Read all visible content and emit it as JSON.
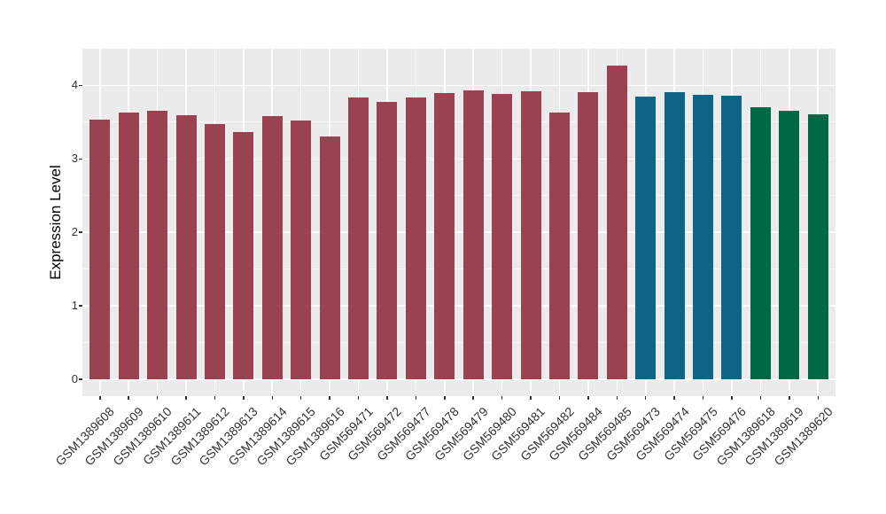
{
  "chart_data": {
    "type": "bar",
    "title": "",
    "xlabel": "",
    "ylabel": "Expression Level",
    "ylim": [
      0,
      4.5
    ],
    "yticks": [
      0,
      1,
      2,
      3,
      4
    ],
    "yminor_ticks": [
      0.5,
      1.5,
      2.5,
      3.5
    ],
    "grid": "white major and minor gridlines on gray panel",
    "legend_position": "none",
    "panel_background": "#EBEBEB",
    "gridline_color": "#FFFFFF",
    "axis_text_color": "#333333",
    "categories": [
      "GSM1389608",
      "GSM1389609",
      "GSM1389610",
      "GSM1389611",
      "GSM1389612",
      "GSM1389613",
      "GSM1389614",
      "GSM1389615",
      "GSM1389616",
      "GSM569471",
      "GSM569472",
      "GSM569477",
      "GSM569478",
      "GSM569479",
      "GSM569480",
      "GSM569481",
      "GSM569482",
      "GSM569484",
      "GSM569485",
      "GSM569473",
      "GSM569474",
      "GSM569475",
      "GSM569476",
      "GSM1389618",
      "GSM1389619",
      "GSM1389620"
    ],
    "values": [
      3.53,
      3.63,
      3.65,
      3.59,
      3.47,
      3.36,
      3.58,
      3.52,
      3.3,
      3.83,
      3.78,
      3.83,
      3.9,
      3.93,
      3.89,
      3.92,
      3.63,
      3.91,
      4.27,
      3.85,
      3.91,
      3.87,
      3.86,
      3.7,
      3.66,
      3.61
    ],
    "groups": [
      "maroon",
      "maroon",
      "maroon",
      "maroon",
      "maroon",
      "maroon",
      "maroon",
      "maroon",
      "maroon",
      "maroon",
      "maroon",
      "maroon",
      "maroon",
      "maroon",
      "maroon",
      "maroon",
      "maroon",
      "maroon",
      "maroon",
      "teal",
      "teal",
      "teal",
      "teal",
      "green",
      "green",
      "green"
    ],
    "palette": {
      "maroon": "#9A4152",
      "teal": "#0E6486",
      "green": "#006847"
    }
  }
}
